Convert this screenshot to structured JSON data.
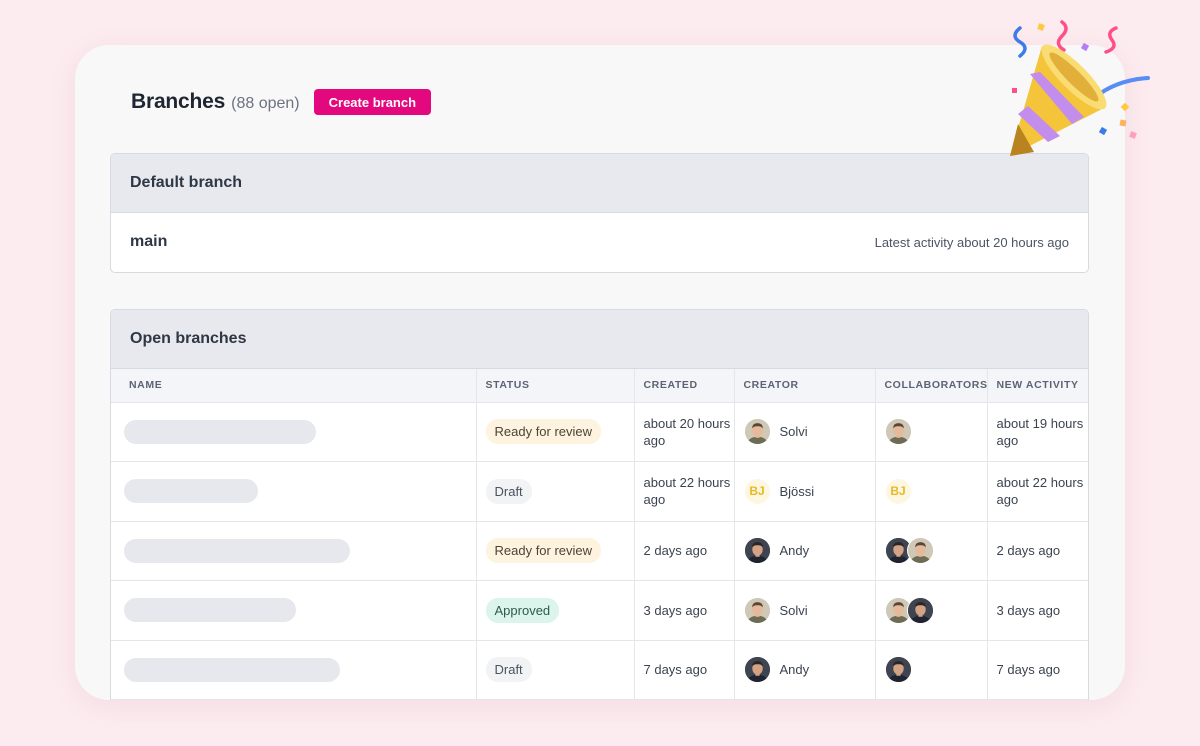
{
  "header": {
    "title": "Branches",
    "count": "(88 open)",
    "create_label": "Create branch"
  },
  "default_branch": {
    "title": "Default branch",
    "name": "main",
    "activity": "Latest activity about 20 hours ago"
  },
  "open_branches": {
    "title": "Open branches",
    "columns": [
      "NAME",
      "STATUS",
      "CREATED",
      "CREATOR",
      "COLLABORATORS",
      "NEW ACTIVITY"
    ],
    "rows": [
      {
        "status": "Ready for review",
        "created": "about 20 hours ago",
        "creator": "Solvi",
        "new_activity": "about 19 hours ago"
      },
      {
        "status": "Draft",
        "created": "about 22 hours ago",
        "creator": "Bjössi",
        "new_activity": "about 22 hours ago"
      },
      {
        "status": "Ready for review",
        "created": "2 days ago",
        "creator": "Andy",
        "new_activity": "2 days ago"
      },
      {
        "status": "Approved",
        "created": "3 days ago",
        "creator": "Solvi",
        "new_activity": "3 days ago"
      },
      {
        "status": "Draft",
        "created": "7 days ago",
        "creator": "Andy",
        "new_activity": "7 days ago"
      }
    ]
  },
  "initials": {
    "bjossi": "BJ"
  },
  "colors": {
    "accent": "#e4087e",
    "background": "#fcebef",
    "review": "#fdf3de",
    "approved": "#dcf5ec",
    "draft": "#f2f3f5"
  },
  "icons": {
    "decoration": "party-popper-icon"
  }
}
